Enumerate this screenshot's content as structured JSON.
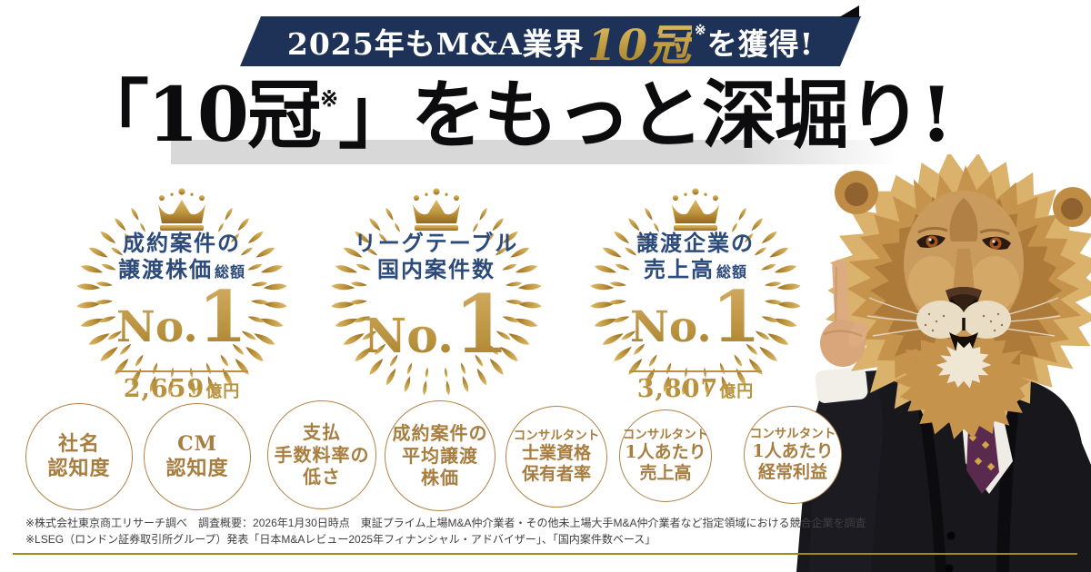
{
  "banner": {
    "prefix": "2025年もM&A業界",
    "highlight": "10冠",
    "note": "※",
    "suffix": "を獲得!"
  },
  "headline": {
    "open_bracket": "「",
    "highlight": "10冠",
    "note": "※",
    "close_bracket": "」",
    "rest": "をもっと深堀り!"
  },
  "badges": [
    {
      "line1": "成約案件の",
      "line2": "譲渡株価",
      "line2_suffix": "総額",
      "no_prefix": "No.",
      "no_value": "1",
      "amount": "2,659",
      "amount_unit": "億円"
    },
    {
      "line1": "リーグテーブル",
      "line2": "国内案件数",
      "no_prefix": "No.",
      "no_value": "1"
    },
    {
      "line1": "譲渡企業の",
      "line2": "売上高",
      "line2_suffix": "総額",
      "no_prefix": "No.",
      "no_value": "1",
      "amount": "3,807",
      "amount_unit": "億円"
    }
  ],
  "metrics": [
    {
      "line1": "社名",
      "line2": "認知度"
    },
    {
      "line1": "CM",
      "line2": "認知度"
    },
    {
      "line1": "支払",
      "line2": "手数料率の",
      "line3": "低さ"
    },
    {
      "line1": "成約案件の",
      "line2": "平均譲渡",
      "line3": "株価"
    },
    {
      "line1": "コンサルタント",
      "line2": "士業資格",
      "line3": "保有者率"
    },
    {
      "line1": "コンサルタント",
      "line2": "1人あたり",
      "line3": "売上高"
    },
    {
      "line1": "コンサルタント",
      "line2": "1人あたり",
      "line3": "経常利益"
    }
  ],
  "footnotes": {
    "line1": "※株式会社東京商工リサーチ調べ　調査概要：2026年1月30日時点　東証プライム上場M&A仲介業者・その他未上場大手M&A仲介業者など指定領域における競合企業を調査",
    "line2": "※LSEG（ロンドン証券取引所グループ）発表「日本M&Aレビュー2025年フィナンシャル・アドバイザー」、「国内案件数ベース」"
  },
  "colors": {
    "navy_banner": "#1e3156",
    "badge_text_navy": "#2c4a7a",
    "gold": "#b8923e",
    "gold_light": "#dcb967",
    "gold_dark": "#93691c",
    "circle_gold": "#a87e40",
    "rule_gold": "#a8861d",
    "headline_black": "#0c0c0e",
    "band_gray": "#d8d8d8"
  }
}
